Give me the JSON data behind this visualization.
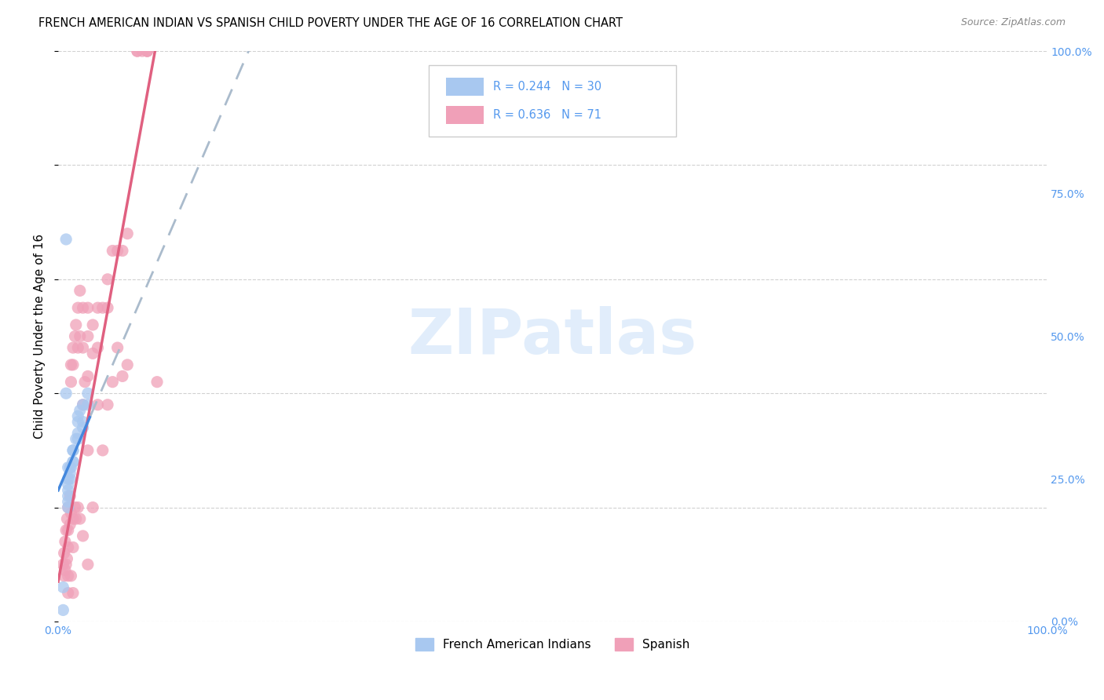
{
  "title": "FRENCH AMERICAN INDIAN VS SPANISH CHILD POVERTY UNDER THE AGE OF 16 CORRELATION CHART",
  "source": "Source: ZipAtlas.com",
  "ylabel": "Child Poverty Under the Age of 16",
  "xmin": 0.0,
  "xmax": 1.0,
  "ymin": 0.0,
  "ymax": 1.0,
  "watermark": "ZIPatlas",
  "color_blue": "#a8c8f0",
  "color_pink": "#f0a0b8",
  "color_blue_line": "#4488dd",
  "color_pink_line": "#e06080",
  "color_blue_text": "#4488cc",
  "axis_label_color": "#5599ee",
  "grid_color": "#cccccc",
  "french_x": [
    0.01,
    0.01,
    0.015,
    0.01,
    0.01,
    0.01,
    0.012,
    0.01,
    0.012,
    0.01,
    0.012,
    0.015,
    0.013,
    0.02,
    0.02,
    0.015,
    0.02,
    0.015,
    0.018,
    0.022,
    0.025,
    0.025,
    0.02,
    0.03,
    0.025,
    0.03,
    0.008,
    0.008,
    0.005,
    0.005
  ],
  "french_y": [
    0.27,
    0.25,
    0.28,
    0.24,
    0.22,
    0.2,
    0.26,
    0.23,
    0.27,
    0.21,
    0.25,
    0.3,
    0.27,
    0.35,
    0.32,
    0.3,
    0.33,
    0.28,
    0.32,
    0.37,
    0.38,
    0.35,
    0.36,
    0.4,
    0.34,
    0.38,
    0.67,
    0.4,
    0.06,
    0.02
  ],
  "spanish_x": [
    0.005,
    0.006,
    0.006,
    0.007,
    0.007,
    0.008,
    0.008,
    0.009,
    0.009,
    0.01,
    0.01,
    0.01,
    0.01,
    0.01,
    0.012,
    0.012,
    0.013,
    0.013,
    0.013,
    0.013,
    0.015,
    0.015,
    0.015,
    0.015,
    0.015,
    0.017,
    0.017,
    0.018,
    0.018,
    0.02,
    0.02,
    0.02,
    0.022,
    0.022,
    0.022,
    0.025,
    0.025,
    0.025,
    0.025,
    0.027,
    0.03,
    0.03,
    0.03,
    0.03,
    0.03,
    0.035,
    0.035,
    0.035,
    0.04,
    0.04,
    0.04,
    0.045,
    0.045,
    0.05,
    0.05,
    0.05,
    0.055,
    0.055,
    0.06,
    0.06,
    0.065,
    0.065,
    0.07,
    0.07,
    0.08,
    0.08,
    0.085,
    0.09,
    0.09,
    0.09,
    0.1
  ],
  "spanish_y": [
    0.1,
    0.12,
    0.08,
    0.14,
    0.09,
    0.16,
    0.1,
    0.18,
    0.11,
    0.2,
    0.16,
    0.13,
    0.08,
    0.05,
    0.22,
    0.17,
    0.45,
    0.42,
    0.19,
    0.08,
    0.48,
    0.45,
    0.18,
    0.13,
    0.05,
    0.5,
    0.2,
    0.52,
    0.18,
    0.55,
    0.48,
    0.2,
    0.58,
    0.5,
    0.18,
    0.55,
    0.48,
    0.38,
    0.15,
    0.42,
    0.55,
    0.5,
    0.43,
    0.3,
    0.1,
    0.52,
    0.47,
    0.2,
    0.55,
    0.48,
    0.38,
    0.55,
    0.3,
    0.6,
    0.55,
    0.38,
    0.65,
    0.42,
    0.65,
    0.48,
    0.65,
    0.43,
    0.68,
    0.45,
    1.0,
    1.0,
    1.0,
    1.0,
    1.0,
    1.0,
    0.42
  ],
  "french_slope": 4.0,
  "french_intercept": 0.23,
  "spanish_slope": 9.5,
  "spanish_intercept": 0.07
}
